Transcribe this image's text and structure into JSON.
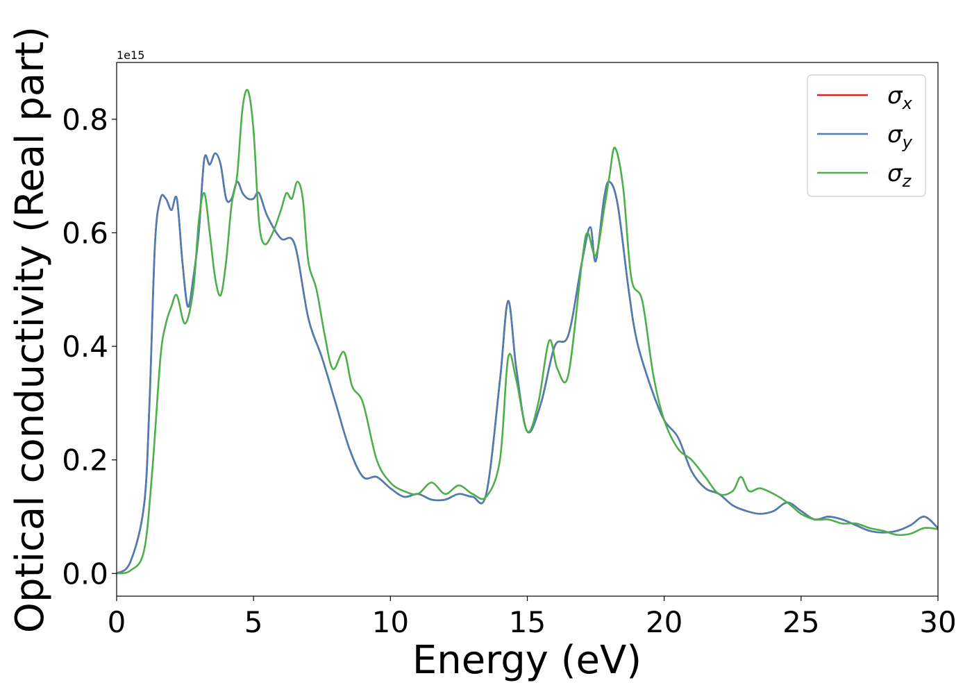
{
  "chart_data": {
    "type": "line",
    "xlabel": "Energy (eV)",
    "ylabel": "Optical conductivity (Real part)",
    "y_offset_label": "1e15",
    "xlim": [
      0,
      30
    ],
    "ylim": [
      -0.04,
      0.9
    ],
    "x_ticks": [
      0,
      5,
      10,
      15,
      20,
      25,
      30
    ],
    "x_tick_labels": [
      "0",
      "5",
      "10",
      "15",
      "20",
      "25",
      "30"
    ],
    "y_ticks": [
      0.0,
      0.2,
      0.4,
      0.6,
      0.8
    ],
    "y_tick_labels": [
      "0.0",
      "0.2",
      "0.4",
      "0.6",
      "0.8"
    ],
    "grid": false,
    "legend_position": "top-right",
    "series": [
      {
        "name": "σ",
        "subscript": "x",
        "color": "#e41a1c",
        "x": [
          0,
          0.5,
          1,
          1.2,
          1.4,
          1.6,
          1.8,
          2,
          2.2,
          2.4,
          2.6,
          2.8,
          3,
          3.2,
          3.4,
          3.6,
          3.8,
          4,
          4.2,
          4.4,
          4.6,
          4.8,
          5,
          5.2,
          5.5,
          6,
          6.5,
          7,
          7.5,
          8,
          8.5,
          9,
          9.5,
          10,
          10.5,
          11,
          11.5,
          12,
          12.5,
          13,
          13.5,
          14,
          14.3,
          14.6,
          15,
          15.5,
          16,
          16.5,
          17,
          17.3,
          17.5,
          17.8,
          18,
          18.3,
          18.7,
          19,
          19.5,
          20,
          20.5,
          21,
          21.5,
          22,
          22.5,
          23,
          23.5,
          24,
          24.5,
          25,
          25.5,
          26,
          26.5,
          27,
          27.5,
          28,
          28.5,
          29,
          29.5,
          30
        ],
        "y": [
          0,
          0.02,
          0.12,
          0.3,
          0.58,
          0.66,
          0.66,
          0.64,
          0.66,
          0.55,
          0.47,
          0.52,
          0.6,
          0.73,
          0.72,
          0.74,
          0.72,
          0.66,
          0.66,
          0.69,
          0.67,
          0.66,
          0.66,
          0.67,
          0.63,
          0.59,
          0.58,
          0.45,
          0.38,
          0.3,
          0.22,
          0.17,
          0.17,
          0.15,
          0.135,
          0.14,
          0.13,
          0.13,
          0.14,
          0.135,
          0.14,
          0.34,
          0.48,
          0.36,
          0.25,
          0.3,
          0.4,
          0.42,
          0.55,
          0.61,
          0.55,
          0.66,
          0.69,
          0.65,
          0.5,
          0.41,
          0.33,
          0.27,
          0.24,
          0.18,
          0.15,
          0.14,
          0.12,
          0.11,
          0.105,
          0.11,
          0.125,
          0.11,
          0.095,
          0.1,
          0.095,
          0.085,
          0.075,
          0.072,
          0.075,
          0.085,
          0.1,
          0.08
        ]
      },
      {
        "name": "σ",
        "subscript": "y",
        "color": "#4a7fb5",
        "x": [
          0,
          0.5,
          1,
          1.2,
          1.4,
          1.6,
          1.8,
          2,
          2.2,
          2.4,
          2.6,
          2.8,
          3,
          3.2,
          3.4,
          3.6,
          3.8,
          4,
          4.2,
          4.4,
          4.6,
          4.8,
          5,
          5.2,
          5.5,
          6,
          6.5,
          7,
          7.5,
          8,
          8.5,
          9,
          9.5,
          10,
          10.5,
          11,
          11.5,
          12,
          12.5,
          13,
          13.5,
          14,
          14.3,
          14.6,
          15,
          15.5,
          16,
          16.5,
          17,
          17.3,
          17.5,
          17.8,
          18,
          18.3,
          18.7,
          19,
          19.5,
          20,
          20.5,
          21,
          21.5,
          22,
          22.5,
          23,
          23.5,
          24,
          24.5,
          25,
          25.5,
          26,
          26.5,
          27,
          27.5,
          28,
          28.5,
          29,
          29.5,
          30
        ],
        "y": [
          0,
          0.02,
          0.12,
          0.3,
          0.58,
          0.66,
          0.66,
          0.64,
          0.66,
          0.55,
          0.47,
          0.52,
          0.6,
          0.73,
          0.72,
          0.74,
          0.72,
          0.66,
          0.66,
          0.69,
          0.67,
          0.66,
          0.66,
          0.67,
          0.63,
          0.59,
          0.58,
          0.45,
          0.38,
          0.3,
          0.22,
          0.17,
          0.17,
          0.15,
          0.135,
          0.14,
          0.13,
          0.13,
          0.14,
          0.135,
          0.14,
          0.34,
          0.48,
          0.36,
          0.25,
          0.3,
          0.4,
          0.42,
          0.55,
          0.61,
          0.55,
          0.66,
          0.69,
          0.65,
          0.5,
          0.41,
          0.33,
          0.27,
          0.24,
          0.18,
          0.15,
          0.14,
          0.12,
          0.11,
          0.105,
          0.11,
          0.125,
          0.11,
          0.095,
          0.1,
          0.095,
          0.085,
          0.075,
          0.072,
          0.075,
          0.085,
          0.1,
          0.08
        ]
      },
      {
        "name": "σ",
        "subscript": "z",
        "color": "#4daf4a",
        "x": [
          0,
          0.5,
          1,
          1.3,
          1.6,
          1.8,
          2,
          2.2,
          2.5,
          2.8,
          3,
          3.2,
          3.4,
          3.6,
          3.8,
          4,
          4.2,
          4.4,
          4.6,
          4.8,
          5,
          5.2,
          5.4,
          5.7,
          6,
          6.2,
          6.4,
          6.6,
          6.8,
          7,
          7.3,
          7.6,
          7.9,
          8.3,
          8.6,
          9,
          9.5,
          10,
          10.5,
          11,
          11.5,
          12,
          12.5,
          13,
          13.5,
          14,
          14.3,
          14.6,
          15,
          15.4,
          15.8,
          16.1,
          16.5,
          17,
          17.2,
          17.5,
          17.8,
          18,
          18.2,
          18.5,
          18.8,
          19.2,
          19.6,
          20,
          20.5,
          21,
          21.5,
          22,
          22.5,
          22.8,
          23.1,
          23.5,
          24,
          24.5,
          25,
          25.5,
          26,
          26.5,
          27,
          27.5,
          28,
          28.5,
          29,
          29.5,
          30
        ],
        "y": [
          0,
          0.005,
          0.04,
          0.18,
          0.38,
          0.44,
          0.47,
          0.49,
          0.44,
          0.5,
          0.62,
          0.67,
          0.6,
          0.52,
          0.49,
          0.55,
          0.65,
          0.7,
          0.82,
          0.85,
          0.78,
          0.62,
          0.58,
          0.6,
          0.64,
          0.67,
          0.66,
          0.69,
          0.66,
          0.55,
          0.5,
          0.42,
          0.36,
          0.39,
          0.33,
          0.3,
          0.2,
          0.16,
          0.145,
          0.14,
          0.16,
          0.14,
          0.155,
          0.14,
          0.135,
          0.2,
          0.38,
          0.34,
          0.25,
          0.3,
          0.41,
          0.36,
          0.35,
          0.55,
          0.6,
          0.56,
          0.64,
          0.7,
          0.75,
          0.68,
          0.52,
          0.48,
          0.35,
          0.27,
          0.22,
          0.2,
          0.17,
          0.14,
          0.145,
          0.17,
          0.145,
          0.15,
          0.14,
          0.125,
          0.105,
          0.095,
          0.095,
          0.088,
          0.088,
          0.08,
          0.075,
          0.068,
          0.07,
          0.08,
          0.078
        ]
      }
    ]
  }
}
